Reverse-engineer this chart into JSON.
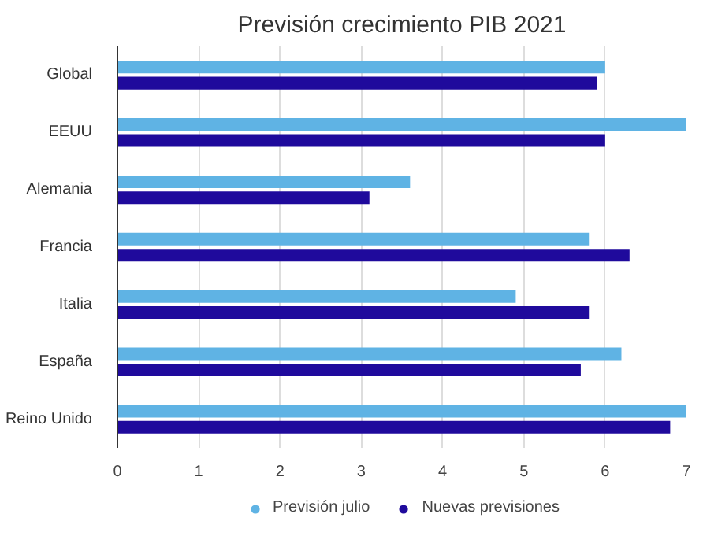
{
  "chart_data": {
    "type": "bar",
    "orientation": "horizontal",
    "title": "Previsión crecimiento PIB 2021",
    "categories": [
      "Global",
      "EEUU",
      "Alemania",
      "Francia",
      "Italia",
      "España",
      "Reino Unido"
    ],
    "series": [
      {
        "name": "Previsión julio",
        "color": "#5fb3e4",
        "values": [
          6.0,
          7.0,
          3.6,
          5.8,
          4.9,
          6.2,
          7.0
        ]
      },
      {
        "name": "Nuevas previsiones",
        "color": "#1f0a9c",
        "values": [
          5.9,
          6.0,
          3.1,
          6.3,
          5.8,
          5.7,
          6.8
        ]
      }
    ],
    "xlim": [
      0,
      7
    ],
    "xticks": [
      0,
      1,
      2,
      3,
      4,
      5,
      6,
      7
    ],
    "grid": "x",
    "legend": "bottom"
  }
}
